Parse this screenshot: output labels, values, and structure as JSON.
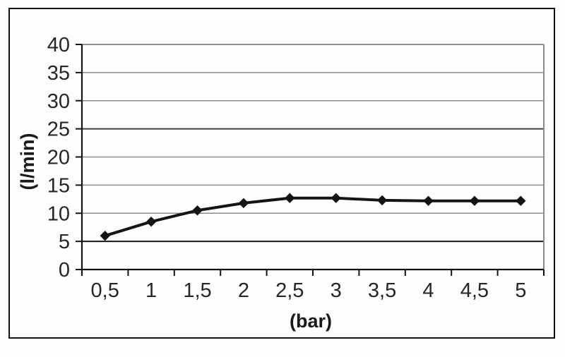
{
  "chart_data": {
    "type": "line",
    "categories": [
      "0,5",
      "1",
      "1,5",
      "2",
      "2,5",
      "3",
      "3,5",
      "4",
      "4,5",
      "5"
    ],
    "values": [
      6,
      8.5,
      10.5,
      11.8,
      12.7,
      12.7,
      12.3,
      12.2,
      12.2,
      12.2
    ],
    "title": "",
    "xlabel": "(bar)",
    "ylabel": "(l/min)",
    "ylim": [
      0,
      40
    ],
    "ytick_step": 5,
    "ytick_labels": [
      "0",
      "5",
      "10",
      "15",
      "20",
      "25",
      "30",
      "35",
      "40"
    ],
    "grid": "horizontal",
    "legend": "none",
    "marker": "diamond",
    "line_color": "#141414",
    "marker_color": "#141414",
    "axis_color": "#141414",
    "gridline_color": "#8c8c8c",
    "plot_border_color": "#8c8c8c",
    "emphasized_gridlines": [
      {
        "value": 5,
        "color": "#161616"
      },
      {
        "value": 25,
        "color": "#3f3f3f"
      }
    ],
    "outer_frame_color": "#111111",
    "background_color": "#fdfdfd"
  }
}
